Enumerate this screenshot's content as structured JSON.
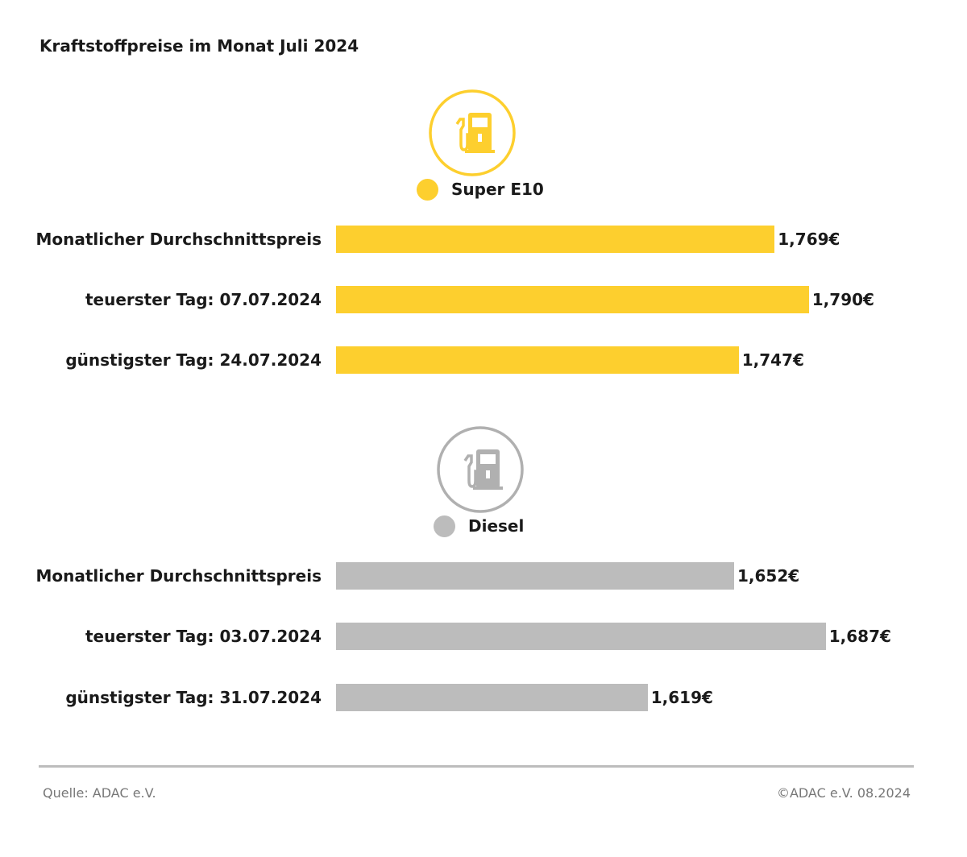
{
  "chart_data": {
    "type": "bar",
    "orientation": "horizontal",
    "title": "Kraftstoffpreise im Monat Juli 2024",
    "groups": [
      {
        "name": "Super E10",
        "color": "#fdcf2e",
        "icon": "fuel-pump-icon",
        "xlim": [
          1.5,
          1.8
        ],
        "categories": [
          "Monatlicher Durchschnittspreis",
          "teuerster Tag: 07.07.2024",
          "günstigster Tag: 24.07.2024"
        ],
        "values": [
          1.769,
          1.79,
          1.747
        ],
        "labels": [
          "1,769€",
          "1,790€",
          "1,747€"
        ]
      },
      {
        "name": "Diesel",
        "color": "#bcbcbc",
        "icon": "fuel-pump-icon",
        "xlim": [
          1.5,
          1.7
        ],
        "categories": [
          "Monatlicher Durchschnittspreis",
          "teuerster Tag: 03.07.2024",
          "günstigster Tag: 31.07.2024"
        ],
        "values": [
          1.652,
          1.687,
          1.619
        ],
        "labels": [
          "1,652€",
          "1,687€",
          "1,619€"
        ]
      }
    ]
  },
  "footer": {
    "source": "Quelle: ADAC e.V.",
    "copyright": "©ADAC e.V. 08.2024"
  }
}
